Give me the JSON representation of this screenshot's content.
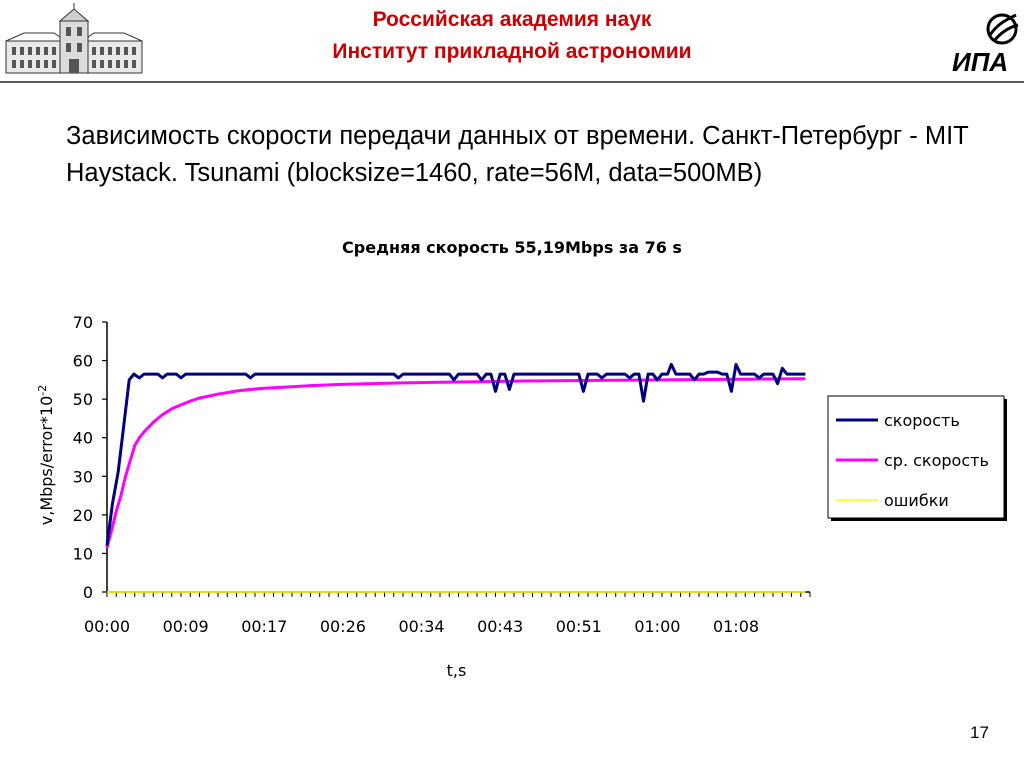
{
  "header": {
    "line1": "Российская академия наук",
    "line2": "Институт прикладной астрономии",
    "logo_left_icon": "academy-building-icon",
    "logo_right_icon": "ipa-logo-icon",
    "logo_right_text": "ИПА"
  },
  "slide": {
    "title": "Зависимость скорости передачи данных от времени. Санкт-Петербург - MIT Haystack. Tsunami (blocksize=1460, rate=56M, data=500MB)",
    "page_number": "17"
  },
  "chart_data": {
    "type": "line",
    "title": "Средняя скорость  55,19Mbps за 76 s",
    "xlabel": "t,s",
    "ylabel_main": "v,Mbps/error*10",
    "ylabel_sup": "-2",
    "xlim": [
      0,
      76
    ],
    "ylim": [
      0,
      70
    ],
    "y_ticks": [
      0,
      10,
      20,
      30,
      40,
      50,
      60,
      70
    ],
    "x_tick_labels": [
      {
        "x": 0,
        "label": "00:00"
      },
      {
        "x": 8.5,
        "label": "00:09"
      },
      {
        "x": 17,
        "label": "00:17"
      },
      {
        "x": 25.5,
        "label": "00:26"
      },
      {
        "x": 34,
        "label": "00:34"
      },
      {
        "x": 42.5,
        "label": "00:43"
      },
      {
        "x": 51,
        "label": "00:51"
      },
      {
        "x": 59.5,
        "label": "01:00"
      },
      {
        "x": 68,
        "label": "01:08"
      }
    ],
    "legend_position": "right",
    "grid": false,
    "series": [
      {
        "name": "скорость",
        "color": "#000080",
        "points": [
          [
            0,
            12
          ],
          [
            0.6,
            23
          ],
          [
            1.2,
            31
          ],
          [
            1.8,
            43
          ],
          [
            2.4,
            55
          ],
          [
            2.9,
            56.5
          ],
          [
            3.5,
            55.5
          ],
          [
            4,
            56.5
          ],
          [
            5.5,
            56.5
          ],
          [
            6,
            55.5
          ],
          [
            6.5,
            56.5
          ],
          [
            7.5,
            56.5
          ],
          [
            8,
            55.5
          ],
          [
            8.5,
            56.5
          ],
          [
            15,
            56.5
          ],
          [
            15.5,
            55.5
          ],
          [
            16,
            56.5
          ],
          [
            31,
            56.5
          ],
          [
            31.5,
            55.5
          ],
          [
            32,
            56.5
          ],
          [
            37,
            56.5
          ],
          [
            37.5,
            55
          ],
          [
            38,
            56.5
          ],
          [
            40,
            56.5
          ],
          [
            40.5,
            55
          ],
          [
            41,
            56.5
          ],
          [
            41.5,
            56.5
          ],
          [
            42,
            52
          ],
          [
            42.5,
            56.5
          ],
          [
            43,
            56.5
          ],
          [
            43.5,
            52.5
          ],
          [
            44,
            56.5
          ],
          [
            51,
            56.5
          ],
          [
            51.5,
            52
          ],
          [
            52,
            56.5
          ],
          [
            53,
            56.5
          ],
          [
            53.5,
            55.5
          ],
          [
            54,
            56.5
          ],
          [
            56,
            56.5
          ],
          [
            56.5,
            55.5
          ],
          [
            57,
            56.5
          ],
          [
            57.5,
            56.5
          ],
          [
            58,
            49.5
          ],
          [
            58.5,
            56.5
          ],
          [
            59,
            56.5
          ],
          [
            59.5,
            55
          ],
          [
            60,
            56.5
          ],
          [
            60.6,
            56.5
          ],
          [
            61,
            59
          ],
          [
            61.5,
            56.5
          ],
          [
            63,
            56.5
          ],
          [
            63.5,
            55
          ],
          [
            64,
            56.5
          ],
          [
            64.5,
            56.5
          ],
          [
            65,
            57
          ],
          [
            66,
            57
          ],
          [
            66.5,
            56.5
          ],
          [
            67,
            56.5
          ],
          [
            67.5,
            52
          ],
          [
            68,
            59
          ],
          [
            68.5,
            56.5
          ],
          [
            70,
            56.5
          ],
          [
            70.5,
            55.5
          ],
          [
            71,
            56.5
          ],
          [
            72,
            56.5
          ],
          [
            72.5,
            54
          ],
          [
            73,
            58
          ],
          [
            73.5,
            56.5
          ],
          [
            75.5,
            56.5
          ]
        ]
      },
      {
        "name": "ср. скорость",
        "color": "#ff00ff",
        "points": [
          [
            0,
            11.5
          ],
          [
            0.5,
            16
          ],
          [
            1,
            21
          ],
          [
            1.5,
            25
          ],
          [
            2,
            30
          ],
          [
            2.5,
            34
          ],
          [
            3,
            38
          ],
          [
            3.5,
            40
          ],
          [
            4,
            41.5
          ],
          [
            5,
            44
          ],
          [
            6,
            46
          ],
          [
            7,
            47.5
          ],
          [
            8,
            48.5
          ],
          [
            9,
            49.5
          ],
          [
            10,
            50.3
          ],
          [
            11,
            50.8
          ],
          [
            12,
            51.3
          ],
          [
            13,
            51.7
          ],
          [
            14,
            52.1
          ],
          [
            15,
            52.4
          ],
          [
            17,
            52.8
          ],
          [
            19,
            53.1
          ],
          [
            22,
            53.5
          ],
          [
            25,
            53.8
          ],
          [
            28,
            54
          ],
          [
            32,
            54.2
          ],
          [
            36,
            54.4
          ],
          [
            40,
            54.5
          ],
          [
            45,
            54.7
          ],
          [
            50,
            54.8
          ],
          [
            55,
            54.9
          ],
          [
            60,
            55
          ],
          [
            65,
            55.1
          ],
          [
            70,
            55.2
          ],
          [
            75.5,
            55.3
          ]
        ]
      },
      {
        "name": "ошибки",
        "color": "#ffff00",
        "points": [
          [
            0,
            0
          ],
          [
            75.5,
            0
          ]
        ]
      }
    ]
  }
}
